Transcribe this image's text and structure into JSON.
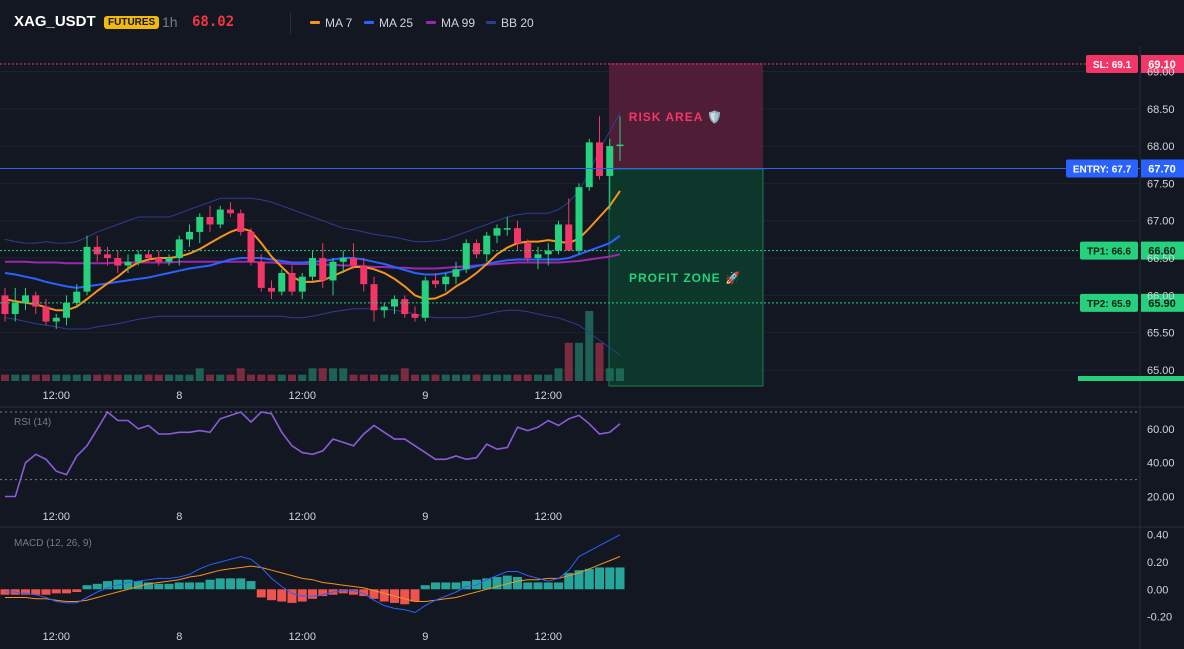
{
  "header": {
    "symbol": "XAG_USDT",
    "badge": "FUTURES",
    "interval": "1h",
    "price": "68.02",
    "legend": [
      {
        "label": "MA 7",
        "color": "#f7931a"
      },
      {
        "label": "MA 25",
        "color": "#2962ff"
      },
      {
        "label": "MA 99",
        "color": "#9c27b0"
      },
      {
        "label": "BB 20",
        "color": "#2e3d8f"
      }
    ]
  },
  "colors": {
    "bull": "#26d07c",
    "bear": "#f23667",
    "ma7": "#f7931a",
    "ma25": "#2962ff",
    "ma99": "#9c27b0",
    "bb": "#2e3d8f",
    "rsi": "#8a5cd8",
    "macd_line": "#2962ff",
    "signal_line": "#f7931a",
    "macd_hist_pos": "#26a69a",
    "macd_hist_neg": "#ef5350"
  },
  "levels": {
    "sl": {
      "label": "SL: 69.1",
      "value": 69.1,
      "price_label": "69.10"
    },
    "entry": {
      "label": "ENTRY: 67.7",
      "value": 67.7,
      "price_label": "67.70"
    },
    "tp1": {
      "label": "TP1: 66.6",
      "value": 66.6,
      "price_label": "66.60"
    },
    "tp2": {
      "label": "TP2: 65.9",
      "value": 65.9,
      "price_label": "65.90"
    }
  },
  "zones": {
    "risk_label": "RISK AREA 🛡️",
    "profit_label": "PROFIT ZONE 🚀"
  },
  "chart_data": [
    {
      "type": "candlestick",
      "title": "XAG_USDT 1h",
      "x_tick_labels": [
        "12:00",
        "8",
        "12:00",
        "9",
        "12:00"
      ],
      "x_tick_index": [
        5,
        17,
        29,
        41,
        53
      ],
      "y_ticks": [
        65.0,
        65.5,
        66.0,
        66.5,
        67.0,
        67.5,
        68.0,
        68.5,
        69.0
      ],
      "y_tick_labels": [
        "65.00",
        "65.50",
        "66.00",
        "66.50",
        "67.00",
        "67.50",
        "68.00",
        "68.50",
        "69.00"
      ],
      "ylim": [
        64.75,
        69.25
      ],
      "ohlc": [
        [
          66.0,
          66.1,
          65.65,
          65.75
        ],
        [
          65.75,
          66.1,
          65.65,
          65.9
        ],
        [
          65.9,
          66.1,
          65.8,
          66.0
        ],
        [
          66.0,
          66.05,
          65.75,
          65.85
        ],
        [
          65.85,
          65.95,
          65.6,
          65.65
        ],
        [
          65.65,
          65.75,
          65.55,
          65.7
        ],
        [
          65.7,
          66.0,
          65.6,
          65.9
        ],
        [
          65.9,
          66.15,
          65.85,
          66.05
        ],
        [
          66.05,
          66.8,
          66.0,
          66.65
        ],
        [
          66.65,
          66.8,
          66.45,
          66.55
        ],
        [
          66.55,
          66.65,
          66.4,
          66.5
        ],
        [
          66.5,
          66.6,
          66.3,
          66.4
        ],
        [
          66.4,
          66.55,
          66.3,
          66.45
        ],
        [
          66.45,
          66.6,
          66.4,
          66.55
        ],
        [
          66.55,
          66.6,
          66.45,
          66.5
        ],
        [
          66.5,
          66.6,
          66.4,
          66.45
        ],
        [
          66.45,
          66.55,
          66.4,
          66.5
        ],
        [
          66.5,
          66.8,
          66.4,
          66.75
        ],
        [
          66.75,
          66.95,
          66.65,
          66.85
        ],
        [
          66.85,
          67.1,
          66.7,
          67.05
        ],
        [
          67.05,
          67.2,
          66.85,
          66.95
        ],
        [
          66.95,
          67.2,
          66.9,
          67.15
        ],
        [
          67.15,
          67.25,
          67.05,
          67.1
        ],
        [
          67.1,
          67.15,
          66.8,
          66.85
        ],
        [
          66.85,
          66.9,
          66.4,
          66.45
        ],
        [
          66.45,
          66.55,
          66.05,
          66.1
        ],
        [
          66.1,
          66.2,
          65.95,
          66.05
        ],
        [
          66.05,
          66.35,
          66.0,
          66.3
        ],
        [
          66.3,
          66.4,
          66.0,
          66.05
        ],
        [
          66.05,
          66.3,
          65.95,
          66.25
        ],
        [
          66.25,
          66.6,
          66.2,
          66.5
        ],
        [
          66.5,
          66.7,
          66.1,
          66.2
        ],
        [
          66.2,
          66.5,
          66.0,
          66.45
        ],
        [
          66.45,
          66.6,
          66.3,
          66.5
        ],
        [
          66.5,
          66.7,
          66.35,
          66.4
        ],
        [
          66.4,
          66.5,
          66.05,
          66.15
        ],
        [
          66.15,
          66.25,
          65.65,
          65.8
        ],
        [
          65.8,
          65.9,
          65.7,
          65.85
        ],
        [
          65.85,
          66.0,
          65.75,
          65.95
        ],
        [
          65.95,
          66.0,
          65.7,
          65.75
        ],
        [
          65.75,
          65.85,
          65.65,
          65.7
        ],
        [
          65.7,
          66.25,
          65.65,
          66.2
        ],
        [
          66.2,
          66.3,
          66.1,
          66.15
        ],
        [
          66.15,
          66.3,
          66.05,
          66.25
        ],
        [
          66.25,
          66.45,
          66.15,
          66.35
        ],
        [
          66.35,
          66.75,
          66.3,
          66.7
        ],
        [
          66.7,
          66.75,
          66.5,
          66.55
        ],
        [
          66.55,
          66.85,
          66.45,
          66.8
        ],
        [
          66.8,
          66.95,
          66.7,
          66.9
        ],
        [
          66.9,
          67.05,
          66.8,
          66.9
        ],
        [
          66.9,
          67.0,
          66.6,
          66.7
        ],
        [
          66.7,
          66.75,
          66.45,
          66.5
        ],
        [
          66.5,
          66.65,
          66.35,
          66.55
        ],
        [
          66.55,
          66.7,
          66.4,
          66.6
        ],
        [
          66.6,
          67.0,
          66.55,
          66.95
        ],
        [
          66.95,
          67.3,
          66.6,
          66.6
        ],
        [
          66.6,
          67.5,
          66.55,
          67.45
        ],
        [
          67.45,
          68.1,
          67.4,
          68.05
        ],
        [
          68.05,
          68.4,
          67.55,
          67.6
        ],
        [
          67.6,
          68.1,
          67.15,
          68.0
        ],
        [
          68.0,
          68.4,
          67.8,
          68.02
        ]
      ],
      "volume": [
        1,
        1,
        1,
        1,
        1,
        1,
        1,
        1,
        1,
        1,
        1,
        1,
        1,
        1,
        1,
        1,
        1,
        1,
        1,
        2,
        1,
        1,
        1,
        2,
        1,
        1,
        1,
        1,
        1,
        1,
        2,
        2,
        2,
        2,
        1,
        1,
        1,
        1,
        1,
        2,
        1,
        1,
        1,
        1,
        1,
        1,
        1,
        1,
        1,
        1,
        1,
        1,
        1,
        1,
        2,
        6,
        6,
        11,
        6,
        2,
        2
      ],
      "ma7": [
        65.95,
        65.92,
        65.9,
        65.88,
        65.84,
        65.8,
        65.8,
        65.85,
        65.95,
        66.06,
        66.16,
        66.25,
        66.36,
        66.44,
        66.48,
        66.5,
        66.5,
        66.52,
        66.56,
        66.62,
        66.7,
        66.78,
        66.85,
        66.9,
        66.86,
        66.7,
        66.52,
        66.38,
        66.25,
        66.18,
        66.18,
        66.2,
        66.26,
        66.32,
        66.38,
        66.38,
        66.35,
        66.3,
        66.22,
        66.12,
        66.0,
        65.95,
        65.96,
        66.02,
        66.12,
        66.2,
        66.3,
        66.42,
        66.55,
        66.64,
        66.7,
        66.72,
        66.72,
        66.74,
        66.72,
        66.7,
        66.76,
        66.9,
        67.05,
        67.2,
        67.4
      ],
      "ma25": [
        66.3,
        66.28,
        66.25,
        66.22,
        66.18,
        66.15,
        66.12,
        66.1,
        66.12,
        66.14,
        66.16,
        66.18,
        66.2,
        66.22,
        66.24,
        66.27,
        66.3,
        66.33,
        66.36,
        66.38,
        66.4,
        66.44,
        66.48,
        66.5,
        66.5,
        66.5,
        66.48,
        66.46,
        66.44,
        66.44,
        66.45,
        66.46,
        66.48,
        66.5,
        66.5,
        66.48,
        66.45,
        66.42,
        66.38,
        66.34,
        66.3,
        66.28,
        66.28,
        66.3,
        66.33,
        66.36,
        66.39,
        66.42,
        66.45,
        66.47,
        66.48,
        66.48,
        66.48,
        66.48,
        66.48,
        66.5,
        66.55,
        66.6,
        66.65,
        66.7,
        66.8
      ],
      "ma99": [
        66.45,
        66.45,
        66.45,
        66.44,
        66.44,
        66.44,
        66.43,
        66.43,
        66.43,
        66.43,
        66.43,
        66.44,
        66.44,
        66.44,
        66.44,
        66.44,
        66.44,
        66.45,
        66.45,
        66.45,
        66.45,
        66.45,
        66.45,
        66.45,
        66.45,
        66.44,
        66.44,
        66.43,
        66.42,
        66.42,
        66.42,
        66.41,
        66.41,
        66.4,
        66.4,
        66.39,
        66.38,
        66.38,
        66.37,
        66.37,
        66.36,
        66.36,
        66.36,
        66.37,
        66.38,
        66.39,
        66.4,
        66.41,
        66.42,
        66.43,
        66.44,
        66.44,
        66.44,
        66.44,
        66.44,
        66.45,
        66.46,
        66.48,
        66.5,
        66.52,
        66.55
      ],
      "bb_upper": [
        66.75,
        66.72,
        66.7,
        66.7,
        66.72,
        66.7,
        66.7,
        66.72,
        66.78,
        66.85,
        66.9,
        66.95,
        67.0,
        67.05,
        67.05,
        67.05,
        67.05,
        67.1,
        67.15,
        67.2,
        67.25,
        67.3,
        67.3,
        67.3,
        67.3,
        67.28,
        67.25,
        67.2,
        67.15,
        67.1,
        67.05,
        67.0,
        66.95,
        66.9,
        66.88,
        66.85,
        66.82,
        66.8,
        66.78,
        66.75,
        66.72,
        66.72,
        66.73,
        66.75,
        66.8,
        66.85,
        66.9,
        66.95,
        67.0,
        67.05,
        67.08,
        67.1,
        67.1,
        67.1,
        67.15,
        67.25,
        67.4,
        67.65,
        67.95,
        68.2,
        68.45
      ],
      "bb_lower": [
        65.7,
        65.68,
        65.65,
        65.62,
        65.6,
        65.58,
        65.55,
        65.55,
        65.55,
        65.58,
        65.6,
        65.62,
        65.65,
        65.68,
        65.7,
        65.72,
        65.72,
        65.72,
        65.72,
        65.72,
        65.72,
        65.72,
        65.72,
        65.72,
        65.72,
        65.72,
        65.72,
        65.72,
        65.7,
        65.7,
        65.72,
        65.75,
        65.78,
        65.8,
        65.82,
        65.82,
        65.82,
        65.82,
        65.8,
        65.78,
        65.75,
        65.72,
        65.7,
        65.7,
        65.7,
        65.7,
        65.72,
        65.75,
        65.78,
        65.8,
        65.8,
        65.78,
        65.75,
        65.72,
        65.7,
        65.65,
        65.6,
        65.5,
        65.4,
        65.3,
        65.2
      ]
    },
    {
      "type": "line",
      "title": "RSI (14)",
      "y_ticks": [
        20,
        40,
        60
      ],
      "y_tick_labels": [
        "20.00",
        "40.00",
        "60.00"
      ],
      "ylim": [
        15,
        70
      ],
      "guides": [
        30,
        70
      ],
      "x_tick_labels": [
        "12:00",
        "8",
        "12:00",
        "9",
        "12:00"
      ],
      "values": [
        20,
        20,
        40,
        45,
        42,
        35,
        33,
        44,
        50,
        60,
        70,
        65,
        65,
        60,
        62,
        57,
        57,
        58,
        58,
        59,
        58,
        66,
        68,
        70,
        64,
        70,
        69,
        58,
        50,
        46,
        45,
        47,
        54,
        52,
        50,
        57,
        62,
        58,
        54,
        54,
        50,
        46,
        42,
        42,
        44,
        42,
        43,
        51,
        48,
        49,
        61,
        59,
        61,
        65,
        62,
        66,
        68,
        63,
        57,
        58,
        63
      ]
    },
    {
      "type": "line+bar",
      "title": "MACD (12, 26, 9)",
      "y_ticks": [
        -0.2,
        0.0,
        0.2,
        0.4
      ],
      "y_tick_labels": [
        "-0.20",
        "0.00",
        "0.20",
        "0.40"
      ],
      "ylim": [
        -0.24,
        0.42
      ],
      "x_tick_labels": [
        "12:00",
        "8",
        "12:00",
        "9",
        "12:00"
      ],
      "macd": [
        -0.02,
        -0.02,
        -0.03,
        -0.04,
        -0.06,
        -0.09,
        -0.1,
        -0.1,
        -0.06,
        -0.02,
        0.01,
        0.03,
        0.05,
        0.06,
        0.07,
        0.08,
        0.08,
        0.09,
        0.11,
        0.15,
        0.18,
        0.2,
        0.22,
        0.24,
        0.22,
        0.16,
        0.08,
        0.02,
        -0.03,
        -0.05,
        -0.05,
        -0.04,
        -0.02,
        -0.01,
        -0.01,
        -0.03,
        -0.08,
        -0.12,
        -0.14,
        -0.15,
        -0.17,
        -0.12,
        -0.08,
        -0.05,
        -0.02,
        0.02,
        0.03,
        0.07,
        0.1,
        0.13,
        0.13,
        0.1,
        0.08,
        0.06,
        0.08,
        0.14,
        0.24,
        0.28,
        0.32,
        0.36,
        0.4
      ],
      "signal": [
        -0.06,
        -0.06,
        -0.06,
        -0.07,
        -0.07,
        -0.08,
        -0.09,
        -0.09,
        -0.08,
        -0.06,
        -0.04,
        -0.02,
        0.0,
        0.02,
        0.04,
        0.05,
        0.06,
        0.07,
        0.09,
        0.1,
        0.12,
        0.14,
        0.15,
        0.16,
        0.17,
        0.16,
        0.14,
        0.12,
        0.1,
        0.08,
        0.07,
        0.05,
        0.04,
        0.03,
        0.02,
        0.01,
        -0.01,
        -0.03,
        -0.05,
        -0.07,
        -0.09,
        -0.09,
        -0.08,
        -0.07,
        -0.06,
        -0.04,
        -0.02,
        0.0,
        0.02,
        0.04,
        0.06,
        0.07,
        0.07,
        0.08,
        0.08,
        0.1,
        0.12,
        0.15,
        0.18,
        0.21,
        0.24
      ],
      "histogram": [
        -0.04,
        -0.04,
        -0.04,
        -0.04,
        -0.04,
        -0.03,
        -0.03,
        -0.02,
        0.03,
        0.04,
        0.06,
        0.07,
        0.07,
        0.06,
        0.05,
        0.04,
        0.04,
        0.05,
        0.05,
        0.05,
        0.07,
        0.08,
        0.08,
        0.08,
        0.06,
        -0.06,
        -0.08,
        -0.09,
        -0.1,
        -0.09,
        -0.07,
        -0.05,
        -0.04,
        -0.03,
        -0.04,
        -0.05,
        -0.07,
        -0.09,
        -0.1,
        -0.11,
        -0.09,
        0.03,
        0.05,
        0.05,
        0.05,
        0.06,
        0.07,
        0.08,
        0.09,
        0.1,
        0.09,
        0.05,
        0.05,
        0.05,
        0.05,
        0.12,
        0.14,
        0.15,
        0.16,
        0.16,
        0.16
      ]
    }
  ]
}
